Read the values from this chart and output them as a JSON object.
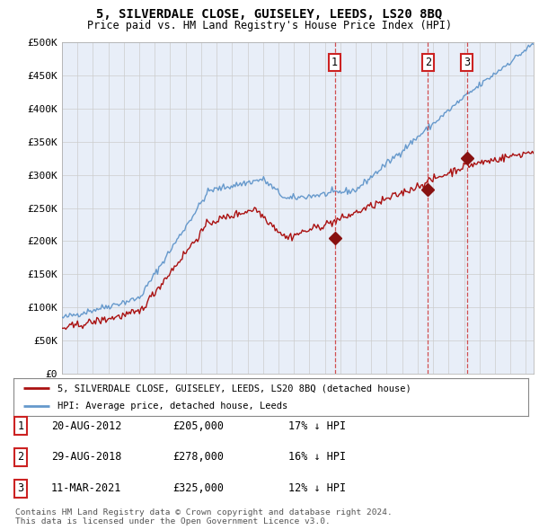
{
  "title1": "5, SILVERDALE CLOSE, GUISELEY, LEEDS, LS20 8BQ",
  "title2": "Price paid vs. HM Land Registry's House Price Index (HPI)",
  "ylabel_ticks": [
    "£0",
    "£50K",
    "£100K",
    "£150K",
    "£200K",
    "£250K",
    "£300K",
    "£350K",
    "£400K",
    "£450K",
    "£500K"
  ],
  "ytick_values": [
    0,
    50000,
    100000,
    150000,
    200000,
    250000,
    300000,
    350000,
    400000,
    450000,
    500000
  ],
  "xlim_start": 1995.0,
  "xlim_end": 2025.5,
  "ylim": [
    0,
    500000
  ],
  "sale_dates": [
    2012.64,
    2018.66,
    2021.19
  ],
  "sale_prices": [
    205000,
    278000,
    325000
  ],
  "sale_labels": [
    "1",
    "2",
    "3"
  ],
  "legend_line1": "5, SILVERDALE CLOSE, GUISELEY, LEEDS, LS20 8BQ (detached house)",
  "legend_line2": "HPI: Average price, detached house, Leeds",
  "table_data": [
    [
      "1",
      "20-AUG-2012",
      "£205,000",
      "17% ↓ HPI"
    ],
    [
      "2",
      "29-AUG-2018",
      "£278,000",
      "16% ↓ HPI"
    ],
    [
      "3",
      "11-MAR-2021",
      "£325,000",
      "12% ↓ HPI"
    ]
  ],
  "footnote1": "Contains HM Land Registry data © Crown copyright and database right 2024.",
  "footnote2": "This data is licensed under the Open Government Licence v3.0.",
  "hpi_color": "#6699cc",
  "price_color": "#aa1111",
  "bg_color": "#e8eef8",
  "grid_color": "#cccccc",
  "sale_marker_color": "#881111",
  "dashed_line_color": "#cc3333"
}
